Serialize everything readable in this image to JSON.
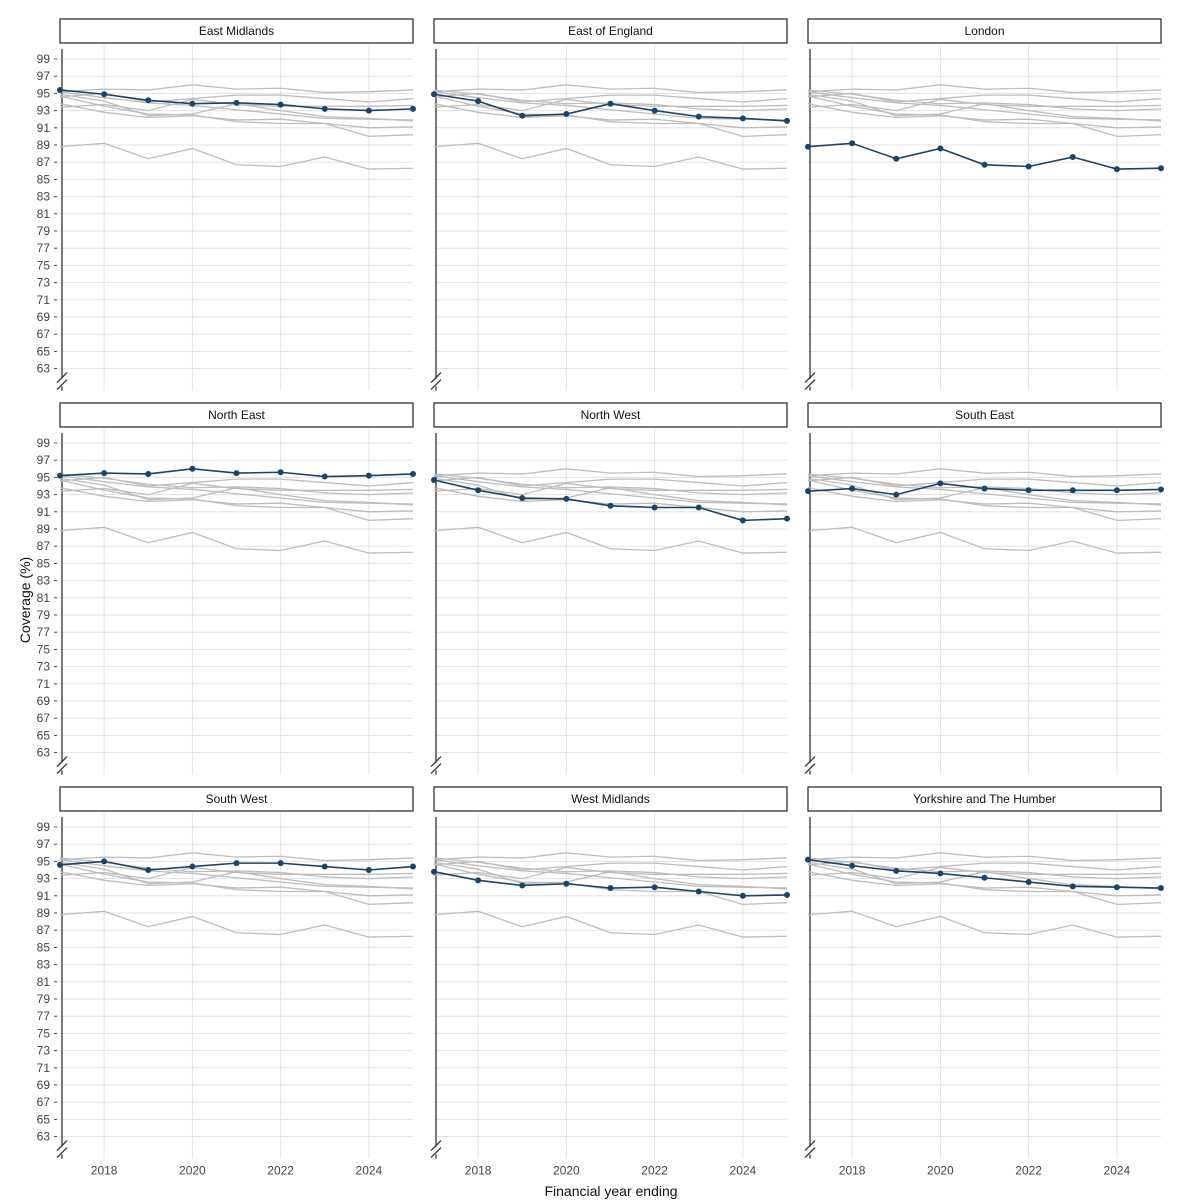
{
  "chart_data": {
    "type": "line",
    "title": "",
    "xlabel": "Financial year ending",
    "ylabel": "Coverage (%)",
    "x": [
      2017,
      2018,
      2019,
      2020,
      2021,
      2022,
      2023,
      2024,
      2025
    ],
    "xticks": [
      2018,
      2020,
      2022,
      2024
    ],
    "ylim": [
      63,
      99
    ],
    "yticks": [
      63,
      65,
      67,
      69,
      71,
      73,
      75,
      77,
      79,
      81,
      83,
      85,
      87,
      89,
      91,
      93,
      95,
      97,
      99
    ],
    "y_axis_break": true,
    "grid": true,
    "highlight_color": "#1b4468",
    "background_color": "#bdbdbd",
    "series": [
      {
        "name": "East Midlands",
        "values": [
          95.4,
          94.9,
          94.2,
          93.8,
          93.9,
          93.7,
          93.2,
          93.0,
          93.2
        ]
      },
      {
        "name": "East of England",
        "values": [
          94.9,
          94.1,
          92.4,
          92.6,
          93.8,
          93.0,
          92.3,
          92.1,
          91.8
        ]
      },
      {
        "name": "London",
        "values": [
          88.8,
          89.2,
          87.4,
          88.6,
          86.7,
          86.5,
          87.6,
          86.2,
          86.3
        ]
      },
      {
        "name": "North East",
        "values": [
          95.2,
          95.5,
          95.4,
          96.0,
          95.5,
          95.6,
          95.1,
          95.2,
          95.4
        ]
      },
      {
        "name": "North West",
        "values": [
          94.7,
          93.5,
          92.6,
          92.5,
          91.7,
          91.5,
          91.5,
          90.0,
          90.2
        ]
      },
      {
        "name": "South East",
        "values": [
          93.4,
          93.7,
          93.0,
          94.3,
          93.7,
          93.5,
          93.5,
          93.5,
          93.6
        ]
      },
      {
        "name": "South West",
        "values": [
          94.6,
          95.0,
          94.0,
          94.4,
          94.8,
          94.8,
          94.4,
          94.0,
          94.4
        ]
      },
      {
        "name": "West Midlands",
        "values": [
          93.8,
          92.8,
          92.2,
          92.4,
          91.9,
          92.0,
          91.5,
          91.0,
          91.1
        ]
      },
      {
        "name": "Yorkshire and The Humber",
        "values": [
          95.2,
          94.5,
          93.9,
          93.6,
          93.1,
          92.6,
          92.1,
          92.0,
          91.9
        ]
      }
    ]
  }
}
